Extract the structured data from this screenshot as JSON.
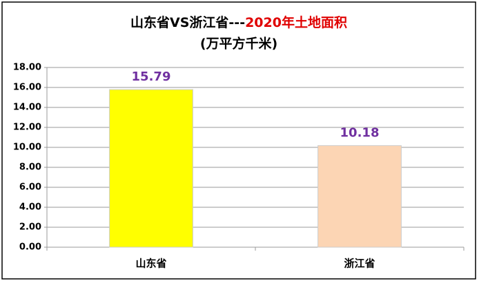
{
  "chart_data": {
    "type": "bar",
    "title_parts": [
      "山东省VS浙江省---",
      "2020年土地面积"
    ],
    "title_colors": [
      "#000000",
      "#e00000"
    ],
    "subtitle": "(万平方千米)",
    "categories": [
      "山东省",
      "浙江省"
    ],
    "values": [
      15.79,
      10.18
    ],
    "colors": [
      "#ffff00",
      "#fcd5b4"
    ],
    "value_label_color": "#7030a0",
    "ylim": [
      0,
      18
    ],
    "yticks": [
      {
        "value": 0,
        "label": "0.00"
      },
      {
        "value": 2,
        "label": "2.00"
      },
      {
        "value": 4,
        "label": "4.00"
      },
      {
        "value": 6,
        "label": "6.00"
      },
      {
        "value": 8,
        "label": "8.00"
      },
      {
        "value": 10,
        "label": "10.00"
      },
      {
        "value": 12,
        "label": "12.00"
      },
      {
        "value": 14,
        "label": "14.00"
      },
      {
        "value": 16,
        "label": "16.00"
      },
      {
        "value": 18,
        "label": "18.00"
      }
    ],
    "grid": true
  }
}
